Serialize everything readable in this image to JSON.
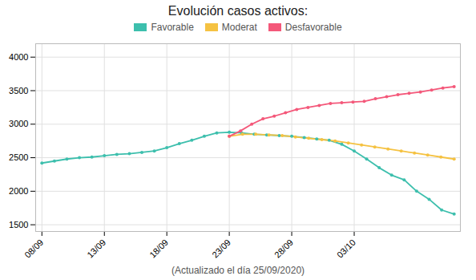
{
  "chart_data": {
    "type": "line",
    "title": "Evolución casos activos:",
    "xlabel": "(Actualizado el día 25/09/2020)",
    "xlim": [
      -0.5,
      33.5
    ],
    "xticks": [
      {
        "value": 0,
        "label": "08/09"
      },
      {
        "value": 5,
        "label": "13/09"
      },
      {
        "value": 10,
        "label": "18/09"
      },
      {
        "value": 15,
        "label": "23/09"
      },
      {
        "value": 20,
        "label": "28/09"
      },
      {
        "value": 25,
        "label": "03/10"
      }
    ],
    "ylim": [
      1400,
      4200
    ],
    "yticks": [
      1500,
      2000,
      2500,
      3000,
      3500,
      4000
    ],
    "grid": true,
    "legend": "top",
    "marker": "circle",
    "series": [
      {
        "name": "Favorable",
        "color": "#3dbfad",
        "x": [
          0,
          1,
          2,
          3,
          4,
          5,
          6,
          7,
          8,
          9,
          10,
          11,
          12,
          13,
          14,
          15,
          16,
          17,
          18,
          19,
          20,
          21,
          22,
          23,
          24,
          25,
          26,
          27,
          28,
          29,
          30,
          31,
          32,
          33
        ],
        "values": [
          2420,
          2450,
          2480,
          2500,
          2510,
          2530,
          2550,
          2560,
          2580,
          2600,
          2650,
          2710,
          2760,
          2820,
          2870,
          2880,
          2870,
          2850,
          2840,
          2830,
          2820,
          2800,
          2780,
          2760,
          2700,
          2600,
          2480,
          2350,
          2240,
          2170,
          2000,
          1880,
          1720,
          1660
        ]
      },
      {
        "name": "Moderat",
        "color": "#f5c242",
        "x": [
          15,
          16.058823529411764,
          17.11764705882353,
          18.176470588235293,
          19.235294117647058,
          20.294117647058822,
          21.352941176470587,
          22.41176470588235,
          23.470588235294116,
          24.529411764705884,
          25.58823529411765,
          26.647058823529413,
          27.705882352941178,
          28.764705882352942,
          29.823529411764707,
          30.88235294117647,
          31.941176470588236,
          33
        ],
        "values": [
          2820,
          2850,
          2850,
          2840,
          2830,
          2810,
          2790,
          2770,
          2750,
          2720,
          2690,
          2660,
          2630,
          2600,
          2570,
          2540,
          2510,
          2480
        ]
      },
      {
        "name": "Desfavorable",
        "color": "#f4587a",
        "x": [
          15,
          15.9,
          16.8,
          17.7,
          18.6,
          19.5,
          20.4,
          21.3,
          22.2,
          23.1,
          24,
          24.9,
          25.8,
          26.7,
          27.6,
          28.5,
          29.4,
          30.3,
          31.2,
          32.1,
          33
        ],
        "values": [
          2820,
          2900,
          3000,
          3080,
          3120,
          3170,
          3220,
          3250,
          3280,
          3310,
          3320,
          3330,
          3340,
          3380,
          3410,
          3440,
          3460,
          3480,
          3510,
          3540,
          3560
        ]
      }
    ]
  }
}
